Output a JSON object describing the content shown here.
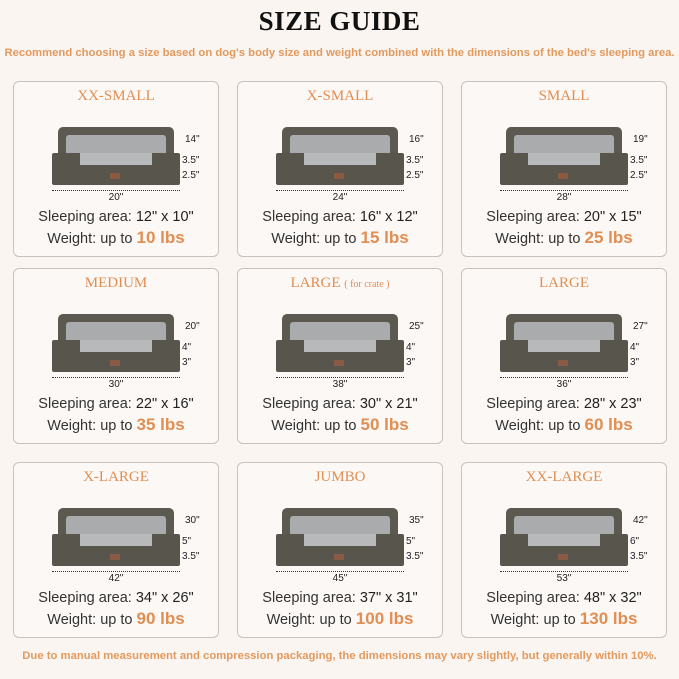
{
  "header": {
    "title": "SIZE GUIDE",
    "subtitle": "Recommend choosing a size based on dog's body size and weight combined with the dimensions of the bed's sleeping area."
  },
  "labels": {
    "sleeping_area": "Sleeping area:",
    "weight": "Weight:",
    "up_to": "up to"
  },
  "sizes": [
    {
      "name": "XX-SMALL",
      "note": "",
      "length": "20\"",
      "height_total": "14\"",
      "h1": "3.5\"",
      "h2": "2.5\"",
      "sleeping": "12\" x 10\"",
      "weight": "10 lbs",
      "pet": "cat"
    },
    {
      "name": "X-SMALL",
      "note": "",
      "length": "24\"",
      "height_total": "16\"",
      "h1": "3.5\"",
      "h2": "2.5\"",
      "sleeping": "16\" x 12\"",
      "weight": "15 lbs",
      "pet": "dog"
    },
    {
      "name": "SMALL",
      "note": "",
      "length": "28\"",
      "height_total": "19\"",
      "h1": "3.5\"",
      "h2": "2.5\"",
      "sleeping": "20\" x 15\"",
      "weight": "25 lbs",
      "pet": "dog"
    },
    {
      "name": "MEDIUM",
      "note": "",
      "length": "30\"",
      "height_total": "20\"",
      "h1": "4\"",
      "h2": "3\"",
      "sleeping": "22\" x 16\"",
      "weight": "35 lbs",
      "pet": "dog"
    },
    {
      "name": "LARGE",
      "note": "( for crate )",
      "length": "38\"",
      "height_total": "25\"",
      "h1": "4\"",
      "h2": "3\"",
      "sleeping": "30\" x 21\"",
      "weight": "50 lbs",
      "pet": "dog"
    },
    {
      "name": "LARGE",
      "note": "",
      "length": "36\"",
      "height_total": "27\"",
      "h1": "4\"",
      "h2": "3\"",
      "sleeping": "28\" x 23\"",
      "weight": "60 lbs",
      "pet": "dog"
    },
    {
      "name": "X-LARGE",
      "note": "",
      "length": "42\"",
      "height_total": "30\"",
      "h1": "5\"",
      "h2": "3.5\"",
      "sleeping": "34\" x 26\"",
      "weight": "90 lbs",
      "pet": "dog"
    },
    {
      "name": "JUMBO",
      "note": "",
      "length": "45\"",
      "height_total": "35\"",
      "h1": "5\"",
      "h2": "3.5\"",
      "sleeping": "37\" x 31\"",
      "weight": "100 lbs",
      "pet": "dog"
    },
    {
      "name": "XX-LARGE",
      "note": "",
      "length": "53\"",
      "height_total": "42\"",
      "h1": "6\"",
      "h2": "3.5\"",
      "sleeping": "48\" x 32\"",
      "weight": "130 lbs",
      "pet": "dog"
    }
  ],
  "footer": "Due to manual measurement and compression packaging, the dimensions may vary slightly, but generally within 10%.",
  "colors": {
    "accent": "#e08e52",
    "background": "#fbf5f1",
    "bed": "#58554c"
  }
}
